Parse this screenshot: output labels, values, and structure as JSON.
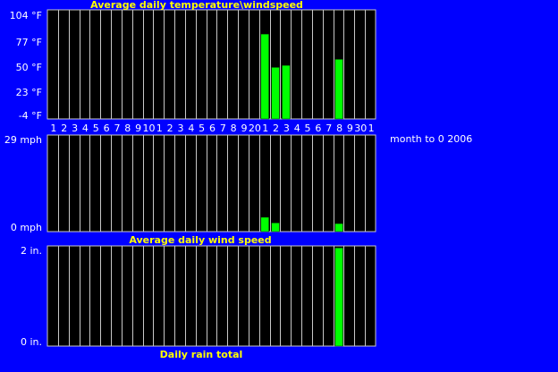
{
  "colors": {
    "background": "#0000ff",
    "plot_background": "#000000",
    "grid": "#c8c8c8",
    "bar": "#00ff00",
    "title": "#ffff00",
    "label": "#ffffff"
  },
  "x_labels": [
    "1",
    "2",
    "3",
    "4",
    "5",
    "6",
    "7",
    "8",
    "9",
    "10",
    "1",
    "2",
    "3",
    "4",
    "5",
    "6",
    "7",
    "8",
    "9",
    "20",
    "1",
    "2",
    "3",
    "4",
    "5",
    "6",
    "7",
    "8",
    "9",
    "30",
    "1"
  ],
  "side_text": "month to 0 2006",
  "chart_data": [
    {
      "type": "bar",
      "title": "Average daily temperature\\windspeed",
      "y_tick_labels": [
        "104 °F",
        "77 °F",
        "50 °F",
        "23 °F",
        "-4 °F"
      ],
      "ylim": [
        -4,
        104
      ],
      "unit": "°F",
      "grid": true,
      "values": [
        null,
        null,
        null,
        null,
        null,
        null,
        null,
        null,
        null,
        null,
        null,
        null,
        null,
        null,
        null,
        null,
        null,
        null,
        null,
        null,
        80,
        47,
        49,
        null,
        null,
        null,
        null,
        55,
        null,
        null,
        null
      ]
    },
    {
      "type": "bar",
      "title": "Average daily wind speed",
      "y_tick_labels": [
        "29 mph",
        "0 mph"
      ],
      "ylim": [
        0,
        29
      ],
      "unit": "mph",
      "grid": true,
      "values": [
        null,
        null,
        null,
        null,
        null,
        null,
        null,
        null,
        null,
        null,
        null,
        null,
        null,
        null,
        null,
        null,
        null,
        null,
        null,
        null,
        4.3,
        2.6,
        null,
        null,
        null,
        null,
        null,
        2.4,
        null,
        null,
        null
      ]
    },
    {
      "type": "bar",
      "title": "Daily rain total",
      "y_tick_labels": [
        "2 in.",
        "0 in."
      ],
      "ylim": [
        0,
        2
      ],
      "unit": "in.",
      "grid": true,
      "values": [
        null,
        null,
        null,
        null,
        null,
        null,
        null,
        null,
        null,
        null,
        null,
        null,
        null,
        null,
        null,
        null,
        null,
        null,
        null,
        null,
        null,
        null,
        null,
        null,
        null,
        null,
        null,
        1.96,
        null,
        null,
        null
      ]
    }
  ]
}
